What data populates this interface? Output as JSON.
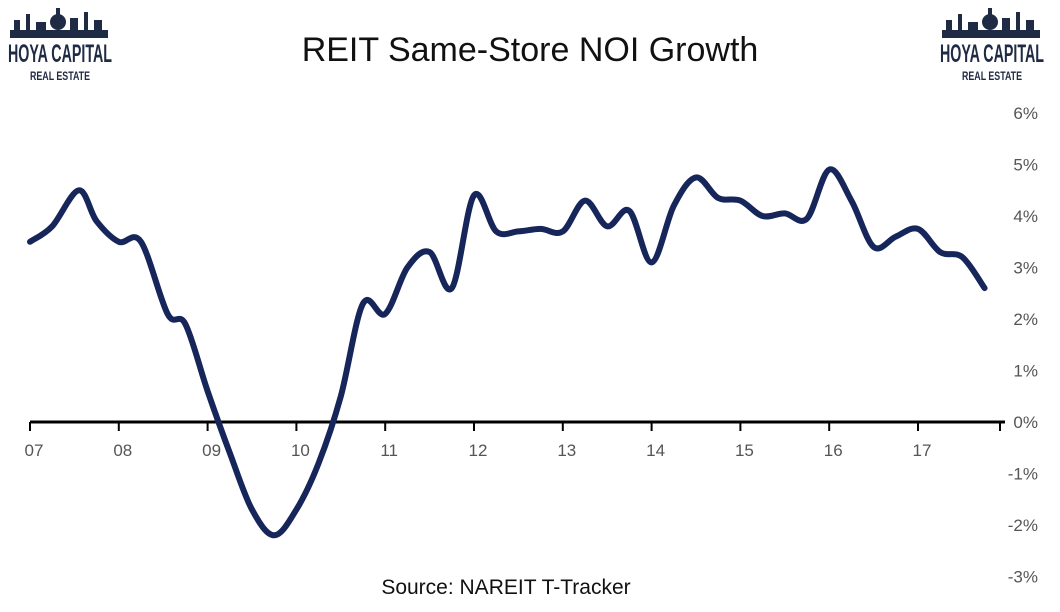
{
  "brand": {
    "name_line1": "HOYA CAPITAL",
    "name_line2": "REAL ESTATE",
    "color": "#1f2a44"
  },
  "chart_data": {
    "type": "line",
    "title": "REIT Same-Store NOI Growth",
    "source": "Source: NAREIT T-Tracker",
    "xlabel": "",
    "ylabel": "",
    "x_tick_labels": [
      "07",
      "08",
      "09",
      "10",
      "11",
      "12",
      "13",
      "14",
      "15",
      "16",
      "17"
    ],
    "y_tick_labels": [
      "6%",
      "5%",
      "4%",
      "3%",
      "2%",
      "1%",
      "0%",
      "-1%",
      "-2%",
      "-3%"
    ],
    "y_ticks": [
      6,
      5,
      4,
      3,
      2,
      1,
      0,
      -1,
      -2,
      -3
    ],
    "xlim": [
      2007,
      2018
    ],
    "ylim": [
      -3,
      6
    ],
    "grid": false,
    "legend": "none",
    "line_color": "#17265a",
    "series": [
      {
        "x": [
          2007.0,
          2007.25,
          2007.55,
          2007.75,
          2008.0,
          2008.25,
          2008.55,
          2008.75,
          2009.0,
          2009.25,
          2009.5,
          2009.75,
          2010.0,
          2010.25,
          2010.5,
          2010.75,
          2011.0,
          2011.25,
          2011.5,
          2011.75,
          2012.0,
          2012.25,
          2012.5,
          2012.75,
          2013.0,
          2013.25,
          2013.5,
          2013.75,
          2014.0,
          2014.25,
          2014.5,
          2014.75,
          2015.0,
          2015.25,
          2015.5,
          2015.75,
          2016.0,
          2016.25,
          2016.5,
          2016.75,
          2017.0,
          2017.25,
          2017.5,
          2017.75
        ],
        "values": [
          3.5,
          3.8,
          4.5,
          3.9,
          3.5,
          3.5,
          2.1,
          1.9,
          0.6,
          -0.6,
          -1.7,
          -2.2,
          -1.7,
          -0.8,
          0.5,
          2.3,
          2.1,
          3.0,
          3.3,
          2.6,
          4.4,
          3.7,
          3.7,
          3.75,
          3.7,
          4.3,
          3.8,
          4.1,
          3.1,
          4.2,
          4.75,
          4.35,
          4.3,
          4.0,
          4.05,
          3.95,
          4.9,
          4.3,
          3.4,
          3.6,
          3.75,
          3.3,
          3.2,
          2.6
        ]
      }
    ]
  }
}
